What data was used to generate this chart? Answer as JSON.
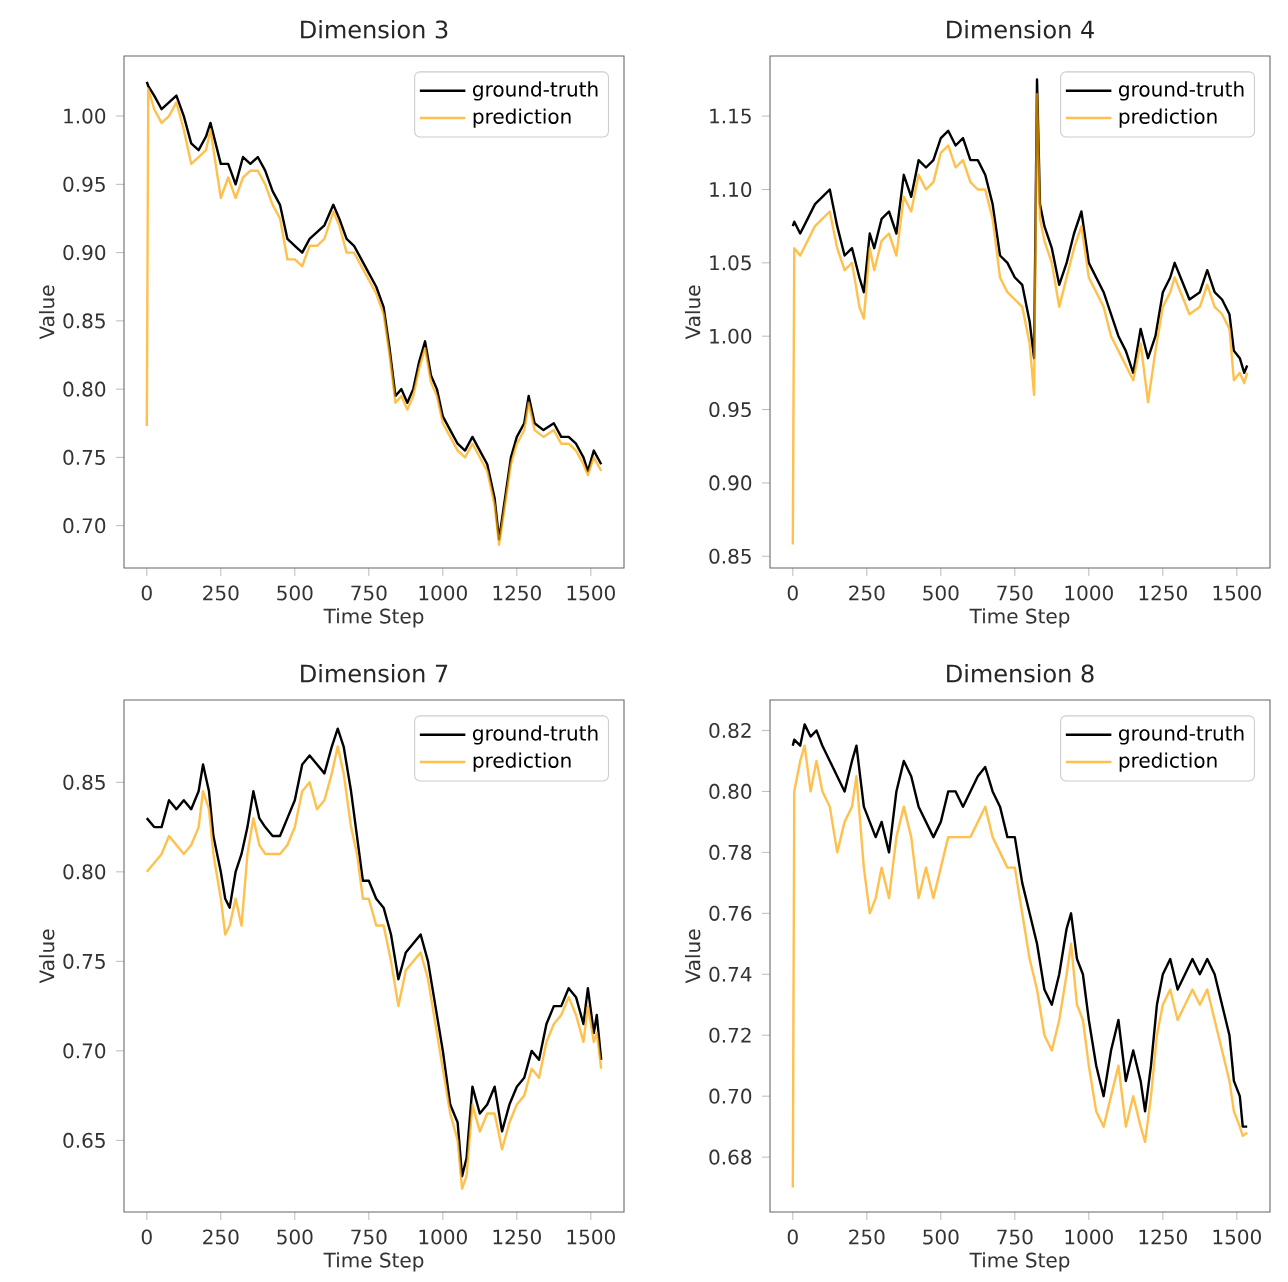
{
  "chart_data": [
    {
      "type": "line",
      "title": "Dimension 3",
      "xlabel": "Time Step",
      "ylabel": "Value",
      "legend": "top right",
      "marker": "none",
      "line_style": "solid",
      "xlim": [
        -77,
        1612
      ],
      "ylim": [
        0.669,
        1.044
      ],
      "xticks": [
        0,
        250,
        500,
        750,
        1000,
        1250,
        1500
      ],
      "yticks": [
        {
          "value": 0.7,
          "label": "0.70"
        },
        {
          "value": 0.75,
          "label": "0.75"
        },
        {
          "value": 0.8,
          "label": "0.80"
        },
        {
          "value": 0.85,
          "label": "0.85"
        },
        {
          "value": 0.9,
          "label": "0.90"
        },
        {
          "value": 0.95,
          "label": "0.95"
        },
        {
          "value": 1.0,
          "label": "1.00"
        }
      ],
      "x": [
        0,
        5,
        25,
        50,
        75,
        100,
        125,
        150,
        175,
        200,
        215,
        250,
        275,
        300,
        325,
        350,
        375,
        400,
        425,
        450,
        475,
        500,
        525,
        550,
        575,
        600,
        630,
        650,
        675,
        700,
        725,
        750,
        775,
        800,
        820,
        840,
        860,
        880,
        900,
        920,
        940,
        960,
        980,
        1000,
        1025,
        1050,
        1075,
        1100,
        1125,
        1150,
        1175,
        1190,
        1210,
        1230,
        1250,
        1275,
        1290,
        1310,
        1340,
        1375,
        1400,
        1425,
        1450,
        1475,
        1490,
        1510,
        1535
      ],
      "series": [
        {
          "name": "ground-truth",
          "color": "#000000",
          "values": [
            1.025,
            1.022,
            1.015,
            1.005,
            1.01,
            1.015,
            1.0,
            0.98,
            0.975,
            0.985,
            0.995,
            0.965,
            0.965,
            0.95,
            0.97,
            0.965,
            0.97,
            0.96,
            0.945,
            0.935,
            0.91,
            0.905,
            0.9,
            0.91,
            0.915,
            0.92,
            0.935,
            0.925,
            0.91,
            0.905,
            0.895,
            0.885,
            0.875,
            0.86,
            0.83,
            0.795,
            0.8,
            0.79,
            0.8,
            0.82,
            0.835,
            0.81,
            0.8,
            0.78,
            0.77,
            0.76,
            0.755,
            0.765,
            0.755,
            0.745,
            0.72,
            0.69,
            0.72,
            0.75,
            0.765,
            0.775,
            0.795,
            0.775,
            0.77,
            0.775,
            0.765,
            0.765,
            0.76,
            0.75,
            0.74,
            0.755,
            0.745
          ]
        },
        {
          "name": "prediction",
          "color": "#ffa500",
          "values": [
            0.773,
            1.02,
            1.005,
            0.995,
            1.0,
            1.01,
            0.99,
            0.965,
            0.97,
            0.975,
            0.99,
            0.94,
            0.955,
            0.94,
            0.955,
            0.96,
            0.96,
            0.95,
            0.935,
            0.925,
            0.895,
            0.895,
            0.89,
            0.905,
            0.905,
            0.91,
            0.93,
            0.92,
            0.9,
            0.9,
            0.89,
            0.88,
            0.87,
            0.855,
            0.825,
            0.79,
            0.795,
            0.785,
            0.795,
            0.815,
            0.83,
            0.805,
            0.795,
            0.775,
            0.765,
            0.755,
            0.75,
            0.76,
            0.75,
            0.74,
            0.715,
            0.686,
            0.715,
            0.745,
            0.76,
            0.77,
            0.79,
            0.77,
            0.765,
            0.77,
            0.76,
            0.76,
            0.755,
            0.745,
            0.737,
            0.75,
            0.74
          ]
        }
      ]
    },
    {
      "type": "line",
      "title": "Dimension 4",
      "xlabel": "Time Step",
      "ylabel": "Value",
      "legend": "top right",
      "marker": "none",
      "line_style": "solid",
      "xlim": [
        -77,
        1612
      ],
      "ylim": [
        0.842,
        1.191
      ],
      "xticks": [
        0,
        250,
        500,
        750,
        1000,
        1250,
        1500
      ],
      "yticks": [
        {
          "value": 0.85,
          "label": "0.85"
        },
        {
          "value": 0.9,
          "label": "0.90"
        },
        {
          "value": 0.95,
          "label": "0.95"
        },
        {
          "value": 1.0,
          "label": "1.00"
        },
        {
          "value": 1.05,
          "label": "1.05"
        },
        {
          "value": 1.1,
          "label": "1.10"
        },
        {
          "value": 1.15,
          "label": "1.15"
        }
      ],
      "x": [
        0,
        5,
        25,
        50,
        75,
        100,
        125,
        150,
        175,
        200,
        225,
        240,
        260,
        275,
        300,
        325,
        350,
        375,
        400,
        425,
        450,
        475,
        500,
        525,
        550,
        575,
        600,
        625,
        650,
        675,
        700,
        725,
        750,
        775,
        800,
        815,
        825,
        835,
        850,
        875,
        900,
        925,
        950,
        975,
        1000,
        1025,
        1050,
        1075,
        1100,
        1125,
        1150,
        1175,
        1200,
        1225,
        1250,
        1275,
        1290,
        1310,
        1340,
        1375,
        1400,
        1425,
        1450,
        1475,
        1490,
        1510,
        1525,
        1535
      ],
      "series": [
        {
          "name": "ground-truth",
          "color": "#000000",
          "values": [
            1.075,
            1.078,
            1.07,
            1.08,
            1.09,
            1.095,
            1.1,
            1.075,
            1.055,
            1.06,
            1.04,
            1.03,
            1.07,
            1.06,
            1.08,
            1.085,
            1.07,
            1.11,
            1.095,
            1.12,
            1.115,
            1.12,
            1.135,
            1.14,
            1.13,
            1.135,
            1.12,
            1.12,
            1.11,
            1.09,
            1.055,
            1.05,
            1.04,
            1.035,
            1.01,
            0.985,
            1.175,
            1.09,
            1.075,
            1.06,
            1.035,
            1.05,
            1.07,
            1.085,
            1.05,
            1.04,
            1.03,
            1.015,
            1.0,
            0.99,
            0.975,
            1.005,
            0.985,
            1.0,
            1.03,
            1.04,
            1.05,
            1.04,
            1.025,
            1.03,
            1.045,
            1.03,
            1.025,
            1.015,
            0.99,
            0.985,
            0.975,
            0.98
          ]
        },
        {
          "name": "prediction",
          "color": "#ffa500",
          "values": [
            0.858,
            1.06,
            1.055,
            1.065,
            1.075,
            1.08,
            1.085,
            1.06,
            1.045,
            1.05,
            1.02,
            1.012,
            1.06,
            1.045,
            1.065,
            1.07,
            1.055,
            1.095,
            1.085,
            1.11,
            1.1,
            1.105,
            1.125,
            1.13,
            1.115,
            1.12,
            1.105,
            1.1,
            1.1,
            1.08,
            1.04,
            1.03,
            1.025,
            1.02,
            0.995,
            0.96,
            1.165,
            1.08,
            1.065,
            1.05,
            1.02,
            1.04,
            1.06,
            1.075,
            1.04,
            1.03,
            1.02,
            1.0,
            0.99,
            0.98,
            0.97,
            0.995,
            0.955,
            0.99,
            1.02,
            1.03,
            1.04,
            1.03,
            1.015,
            1.02,
            1.035,
            1.02,
            1.015,
            1.005,
            0.97,
            0.975,
            0.968,
            0.975
          ]
        }
      ]
    },
    {
      "type": "line",
      "title": "Dimension 7",
      "xlabel": "Time Step",
      "ylabel": "Value",
      "legend": "top right",
      "marker": "none",
      "line_style": "solid",
      "xlim": [
        -77,
        1612
      ],
      "ylim": [
        0.61,
        0.896
      ],
      "xticks": [
        0,
        250,
        500,
        750,
        1000,
        1250,
        1500
      ],
      "yticks": [
        {
          "value": 0.65,
          "label": "0.65"
        },
        {
          "value": 0.7,
          "label": "0.70"
        },
        {
          "value": 0.75,
          "label": "0.75"
        },
        {
          "value": 0.8,
          "label": "0.80"
        },
        {
          "value": 0.85,
          "label": "0.85"
        }
      ],
      "x": [
        0,
        25,
        50,
        75,
        100,
        125,
        150,
        175,
        190,
        210,
        225,
        250,
        265,
        280,
        300,
        320,
        340,
        360,
        380,
        400,
        425,
        450,
        475,
        500,
        525,
        550,
        575,
        600,
        625,
        645,
        665,
        690,
        710,
        730,
        750,
        775,
        800,
        825,
        850,
        875,
        900,
        925,
        950,
        975,
        1000,
        1025,
        1050,
        1065,
        1080,
        1100,
        1125,
        1150,
        1175,
        1200,
        1225,
        1250,
        1275,
        1300,
        1325,
        1350,
        1375,
        1400,
        1425,
        1450,
        1475,
        1490,
        1510,
        1520,
        1535
      ],
      "series": [
        {
          "name": "ground-truth",
          "color": "#000000",
          "values": [
            0.83,
            0.825,
            0.825,
            0.84,
            0.835,
            0.84,
            0.835,
            0.845,
            0.86,
            0.845,
            0.82,
            0.8,
            0.785,
            0.78,
            0.8,
            0.81,
            0.825,
            0.845,
            0.83,
            0.825,
            0.82,
            0.82,
            0.83,
            0.84,
            0.86,
            0.865,
            0.86,
            0.855,
            0.87,
            0.88,
            0.87,
            0.845,
            0.82,
            0.795,
            0.795,
            0.785,
            0.78,
            0.765,
            0.74,
            0.755,
            0.76,
            0.765,
            0.75,
            0.725,
            0.7,
            0.67,
            0.66,
            0.63,
            0.64,
            0.68,
            0.665,
            0.67,
            0.68,
            0.655,
            0.67,
            0.68,
            0.685,
            0.7,
            0.695,
            0.715,
            0.725,
            0.725,
            0.735,
            0.73,
            0.715,
            0.735,
            0.71,
            0.72,
            0.695
          ]
        },
        {
          "name": "prediction",
          "color": "#ffa500",
          "values": [
            0.8,
            0.805,
            0.81,
            0.82,
            0.815,
            0.81,
            0.815,
            0.825,
            0.845,
            0.835,
            0.81,
            0.785,
            0.765,
            0.77,
            0.785,
            0.77,
            0.81,
            0.83,
            0.815,
            0.81,
            0.81,
            0.81,
            0.815,
            0.825,
            0.845,
            0.85,
            0.835,
            0.84,
            0.855,
            0.87,
            0.855,
            0.825,
            0.81,
            0.785,
            0.785,
            0.77,
            0.77,
            0.75,
            0.725,
            0.745,
            0.75,
            0.755,
            0.74,
            0.715,
            0.69,
            0.665,
            0.65,
            0.623,
            0.63,
            0.67,
            0.655,
            0.665,
            0.665,
            0.645,
            0.66,
            0.67,
            0.675,
            0.69,
            0.685,
            0.705,
            0.715,
            0.72,
            0.73,
            0.72,
            0.705,
            0.725,
            0.705,
            0.71,
            0.69
          ]
        }
      ]
    },
    {
      "type": "line",
      "title": "Dimension 8",
      "xlabel": "Time Step",
      "ylabel": "Value",
      "legend": "top right",
      "marker": "none",
      "line_style": "solid",
      "xlim": [
        -77,
        1612
      ],
      "ylim": [
        0.662,
        0.83
      ],
      "xticks": [
        0,
        250,
        500,
        750,
        1000,
        1250,
        1500
      ],
      "yticks": [
        {
          "value": 0.68,
          "label": "0.68"
        },
        {
          "value": 0.7,
          "label": "0.70"
        },
        {
          "value": 0.72,
          "label": "0.72"
        },
        {
          "value": 0.74,
          "label": "0.74"
        },
        {
          "value": 0.76,
          "label": "0.76"
        },
        {
          "value": 0.78,
          "label": "0.78"
        },
        {
          "value": 0.8,
          "label": "0.80"
        },
        {
          "value": 0.82,
          "label": "0.82"
        }
      ],
      "x": [
        0,
        5,
        25,
        40,
        60,
        80,
        100,
        125,
        150,
        175,
        200,
        215,
        240,
        260,
        280,
        300,
        325,
        350,
        375,
        400,
        425,
        450,
        475,
        500,
        525,
        550,
        575,
        600,
        625,
        650,
        675,
        700,
        725,
        750,
        775,
        800,
        825,
        850,
        875,
        900,
        925,
        940,
        960,
        980,
        1000,
        1025,
        1050,
        1075,
        1100,
        1125,
        1150,
        1175,
        1190,
        1210,
        1230,
        1250,
        1275,
        1300,
        1325,
        1350,
        1375,
        1400,
        1425,
        1450,
        1475,
        1490,
        1510,
        1520,
        1535
      ],
      "series": [
        {
          "name": "ground-truth",
          "color": "#000000",
          "values": [
            0.815,
            0.817,
            0.815,
            0.822,
            0.818,
            0.82,
            0.815,
            0.81,
            0.805,
            0.8,
            0.81,
            0.815,
            0.795,
            0.79,
            0.785,
            0.79,
            0.78,
            0.8,
            0.81,
            0.805,
            0.795,
            0.79,
            0.785,
            0.79,
            0.8,
            0.8,
            0.795,
            0.8,
            0.805,
            0.808,
            0.8,
            0.795,
            0.785,
            0.785,
            0.77,
            0.76,
            0.75,
            0.735,
            0.73,
            0.74,
            0.755,
            0.76,
            0.745,
            0.74,
            0.725,
            0.71,
            0.7,
            0.715,
            0.725,
            0.705,
            0.715,
            0.705,
            0.695,
            0.71,
            0.73,
            0.74,
            0.745,
            0.735,
            0.74,
            0.745,
            0.74,
            0.745,
            0.74,
            0.73,
            0.72,
            0.705,
            0.7,
            0.69,
            0.69
          ]
        },
        {
          "name": "prediction",
          "color": "#ffa500",
          "values": [
            0.67,
            0.8,
            0.81,
            0.815,
            0.8,
            0.81,
            0.8,
            0.795,
            0.78,
            0.79,
            0.795,
            0.805,
            0.775,
            0.76,
            0.765,
            0.775,
            0.765,
            0.785,
            0.795,
            0.785,
            0.765,
            0.775,
            0.765,
            0.775,
            0.785,
            0.785,
            0.785,
            0.785,
            0.79,
            0.795,
            0.785,
            0.78,
            0.775,
            0.775,
            0.76,
            0.745,
            0.735,
            0.72,
            0.715,
            0.725,
            0.74,
            0.75,
            0.73,
            0.725,
            0.71,
            0.695,
            0.69,
            0.7,
            0.71,
            0.69,
            0.7,
            0.69,
            0.685,
            0.7,
            0.72,
            0.73,
            0.735,
            0.725,
            0.73,
            0.735,
            0.73,
            0.735,
            0.725,
            0.715,
            0.705,
            0.695,
            0.69,
            0.687,
            0.688
          ]
        }
      ]
    }
  ]
}
